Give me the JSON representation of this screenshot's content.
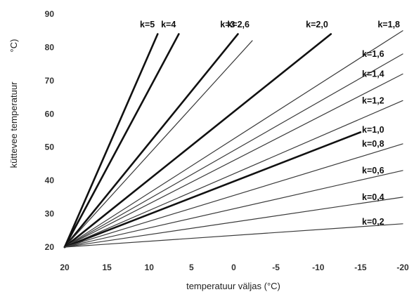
{
  "chart_data": {
    "type": "line",
    "title": "",
    "xlabel": "temperatuur väljas (°C)",
    "ylabel": "küttevee temperatuur",
    "ylabel_unit": "°C)",
    "xlim": [
      20,
      -20
    ],
    "ylim": [
      20,
      90
    ],
    "x_ticks": [
      "20",
      "15",
      "10",
      "5",
      "0",
      "-5",
      "-10",
      "-15",
      "-20"
    ],
    "y_ticks": [
      "20",
      "30",
      "40",
      "50",
      "60",
      "70",
      "80",
      "90"
    ],
    "grid": false,
    "series": [
      {
        "name": "k=5",
        "x": [
          20,
          9
        ],
        "y": [
          20,
          84
        ],
        "bold": true
      },
      {
        "name": "k=4",
        "x": [
          20,
          6.5
        ],
        "y": [
          20,
          84
        ],
        "bold": true
      },
      {
        "name": "k=3",
        "x": [
          20,
          -0.5
        ],
        "y": [
          20,
          84
        ],
        "bold": true
      },
      {
        "name": "k=2,6",
        "x": [
          20,
          -2.2
        ],
        "y": [
          20,
          82
        ],
        "bold": false
      },
      {
        "name": "k=2,0",
        "x": [
          20,
          -11.5
        ],
        "y": [
          20,
          84
        ],
        "bold": true
      },
      {
        "name": "k=1,8",
        "x": [
          20,
          -20
        ],
        "y": [
          20,
          85
        ],
        "bold": false
      },
      {
        "name": "k=1,6",
        "x": [
          20,
          -20
        ],
        "y": [
          20,
          78
        ],
        "bold": false
      },
      {
        "name": "k=1,4",
        "x": [
          20,
          -20
        ],
        "y": [
          20,
          72
        ],
        "bold": false
      },
      {
        "name": "k=1,2",
        "x": [
          20,
          -20
        ],
        "y": [
          20,
          64
        ],
        "bold": false
      },
      {
        "name": "k=1,0",
        "x": [
          20,
          -15
        ],
        "y": [
          20,
          54.5
        ],
        "bold": true
      },
      {
        "name": "k=0,8",
        "x": [
          20,
          -20
        ],
        "y": [
          20,
          51
        ],
        "bold": false
      },
      {
        "name": "k=0,6",
        "x": [
          20,
          -20
        ],
        "y": [
          20,
          43
        ],
        "bold": false
      },
      {
        "name": "k=0,4",
        "x": [
          20,
          -20
        ],
        "y": [
          20,
          35
        ],
        "bold": false
      },
      {
        "name": "k=0,2",
        "x": [
          20,
          -20
        ],
        "y": [
          20,
          27
        ],
        "bold": false
      }
    ]
  }
}
